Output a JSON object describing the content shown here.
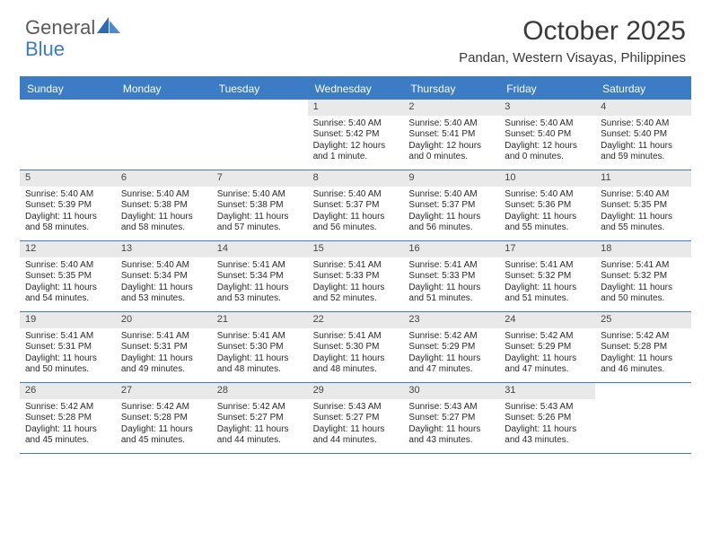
{
  "brand": {
    "part1": "General",
    "part2": "Blue"
  },
  "title": "October 2025",
  "location": "Pandan, Western Visayas, Philippines",
  "colors": {
    "accent": "#3b7cc4",
    "header_text": "#ffffff",
    "date_bg": "#e9e9e9",
    "body_text": "#2a2a2a",
    "title_text": "#3a3a3a",
    "logo_gray": "#5a5a5a"
  },
  "fonts": {
    "title_size": 30,
    "location_size": 15,
    "day_header_size": 12,
    "date_size": 11,
    "cell_size": 10
  },
  "days": [
    "Sunday",
    "Monday",
    "Tuesday",
    "Wednesday",
    "Thursday",
    "Friday",
    "Saturday"
  ],
  "weeks": [
    [
      {
        "date": "",
        "empty": true
      },
      {
        "date": "",
        "empty": true
      },
      {
        "date": "",
        "empty": true
      },
      {
        "date": "1",
        "sunrise": "Sunrise: 5:40 AM",
        "sunset": "Sunset: 5:42 PM",
        "daylight": "Daylight: 12 hours and 1 minute."
      },
      {
        "date": "2",
        "sunrise": "Sunrise: 5:40 AM",
        "sunset": "Sunset: 5:41 PM",
        "daylight": "Daylight: 12 hours and 0 minutes."
      },
      {
        "date": "3",
        "sunrise": "Sunrise: 5:40 AM",
        "sunset": "Sunset: 5:40 PM",
        "daylight": "Daylight: 12 hours and 0 minutes."
      },
      {
        "date": "4",
        "sunrise": "Sunrise: 5:40 AM",
        "sunset": "Sunset: 5:40 PM",
        "daylight": "Daylight: 11 hours and 59 minutes."
      }
    ],
    [
      {
        "date": "5",
        "sunrise": "Sunrise: 5:40 AM",
        "sunset": "Sunset: 5:39 PM",
        "daylight": "Daylight: 11 hours and 58 minutes."
      },
      {
        "date": "6",
        "sunrise": "Sunrise: 5:40 AM",
        "sunset": "Sunset: 5:38 PM",
        "daylight": "Daylight: 11 hours and 58 minutes."
      },
      {
        "date": "7",
        "sunrise": "Sunrise: 5:40 AM",
        "sunset": "Sunset: 5:38 PM",
        "daylight": "Daylight: 11 hours and 57 minutes."
      },
      {
        "date": "8",
        "sunrise": "Sunrise: 5:40 AM",
        "sunset": "Sunset: 5:37 PM",
        "daylight": "Daylight: 11 hours and 56 minutes."
      },
      {
        "date": "9",
        "sunrise": "Sunrise: 5:40 AM",
        "sunset": "Sunset: 5:37 PM",
        "daylight": "Daylight: 11 hours and 56 minutes."
      },
      {
        "date": "10",
        "sunrise": "Sunrise: 5:40 AM",
        "sunset": "Sunset: 5:36 PM",
        "daylight": "Daylight: 11 hours and 55 minutes."
      },
      {
        "date": "11",
        "sunrise": "Sunrise: 5:40 AM",
        "sunset": "Sunset: 5:35 PM",
        "daylight": "Daylight: 11 hours and 55 minutes."
      }
    ],
    [
      {
        "date": "12",
        "sunrise": "Sunrise: 5:40 AM",
        "sunset": "Sunset: 5:35 PM",
        "daylight": "Daylight: 11 hours and 54 minutes."
      },
      {
        "date": "13",
        "sunrise": "Sunrise: 5:40 AM",
        "sunset": "Sunset: 5:34 PM",
        "daylight": "Daylight: 11 hours and 53 minutes."
      },
      {
        "date": "14",
        "sunrise": "Sunrise: 5:41 AM",
        "sunset": "Sunset: 5:34 PM",
        "daylight": "Daylight: 11 hours and 53 minutes."
      },
      {
        "date": "15",
        "sunrise": "Sunrise: 5:41 AM",
        "sunset": "Sunset: 5:33 PM",
        "daylight": "Daylight: 11 hours and 52 minutes."
      },
      {
        "date": "16",
        "sunrise": "Sunrise: 5:41 AM",
        "sunset": "Sunset: 5:33 PM",
        "daylight": "Daylight: 11 hours and 51 minutes."
      },
      {
        "date": "17",
        "sunrise": "Sunrise: 5:41 AM",
        "sunset": "Sunset: 5:32 PM",
        "daylight": "Daylight: 11 hours and 51 minutes."
      },
      {
        "date": "18",
        "sunrise": "Sunrise: 5:41 AM",
        "sunset": "Sunset: 5:32 PM",
        "daylight": "Daylight: 11 hours and 50 minutes."
      }
    ],
    [
      {
        "date": "19",
        "sunrise": "Sunrise: 5:41 AM",
        "sunset": "Sunset: 5:31 PM",
        "daylight": "Daylight: 11 hours and 50 minutes."
      },
      {
        "date": "20",
        "sunrise": "Sunrise: 5:41 AM",
        "sunset": "Sunset: 5:31 PM",
        "daylight": "Daylight: 11 hours and 49 minutes."
      },
      {
        "date": "21",
        "sunrise": "Sunrise: 5:41 AM",
        "sunset": "Sunset: 5:30 PM",
        "daylight": "Daylight: 11 hours and 48 minutes."
      },
      {
        "date": "22",
        "sunrise": "Sunrise: 5:41 AM",
        "sunset": "Sunset: 5:30 PM",
        "daylight": "Daylight: 11 hours and 48 minutes."
      },
      {
        "date": "23",
        "sunrise": "Sunrise: 5:42 AM",
        "sunset": "Sunset: 5:29 PM",
        "daylight": "Daylight: 11 hours and 47 minutes."
      },
      {
        "date": "24",
        "sunrise": "Sunrise: 5:42 AM",
        "sunset": "Sunset: 5:29 PM",
        "daylight": "Daylight: 11 hours and 47 minutes."
      },
      {
        "date": "25",
        "sunrise": "Sunrise: 5:42 AM",
        "sunset": "Sunset: 5:28 PM",
        "daylight": "Daylight: 11 hours and 46 minutes."
      }
    ],
    [
      {
        "date": "26",
        "sunrise": "Sunrise: 5:42 AM",
        "sunset": "Sunset: 5:28 PM",
        "daylight": "Daylight: 11 hours and 45 minutes."
      },
      {
        "date": "27",
        "sunrise": "Sunrise: 5:42 AM",
        "sunset": "Sunset: 5:28 PM",
        "daylight": "Daylight: 11 hours and 45 minutes."
      },
      {
        "date": "28",
        "sunrise": "Sunrise: 5:42 AM",
        "sunset": "Sunset: 5:27 PM",
        "daylight": "Daylight: 11 hours and 44 minutes."
      },
      {
        "date": "29",
        "sunrise": "Sunrise: 5:43 AM",
        "sunset": "Sunset: 5:27 PM",
        "daylight": "Daylight: 11 hours and 44 minutes."
      },
      {
        "date": "30",
        "sunrise": "Sunrise: 5:43 AM",
        "sunset": "Sunset: 5:27 PM",
        "daylight": "Daylight: 11 hours and 43 minutes."
      },
      {
        "date": "31",
        "sunrise": "Sunrise: 5:43 AM",
        "sunset": "Sunset: 5:26 PM",
        "daylight": "Daylight: 11 hours and 43 minutes."
      },
      {
        "date": "",
        "empty": true
      }
    ]
  ]
}
